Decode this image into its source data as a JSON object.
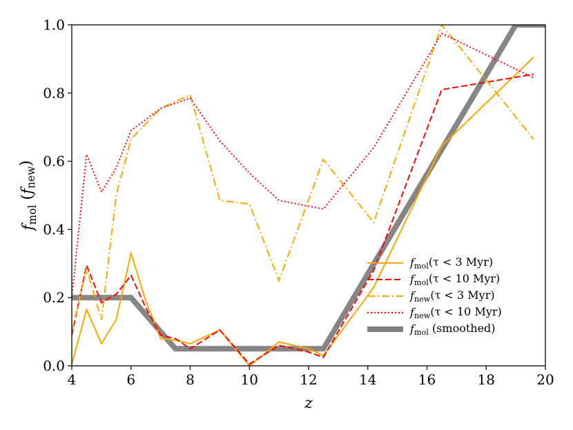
{
  "chart_data": {
    "type": "line",
    "xlabel": "z",
    "ylabel": "f_mol (f_new)",
    "ylabel_parts": [
      "f",
      "mol",
      " (",
      "f",
      "new",
      ")"
    ],
    "xlim": [
      4,
      20
    ],
    "ylim": [
      0,
      1
    ],
    "xticks": [
      4,
      6,
      8,
      10,
      12,
      14,
      16,
      18,
      20
    ],
    "yticks": [
      0.0,
      0.2,
      0.4,
      0.6,
      0.8,
      1.0
    ],
    "xtick_labels": [
      "4",
      "6",
      "8",
      "10",
      "12",
      "14",
      "16",
      "18",
      "20"
    ],
    "ytick_labels": [
      "0.0",
      "0.2",
      "0.4",
      "0.6",
      "0.8",
      "1.0"
    ],
    "grid": false,
    "legend_position": "lower-right",
    "series": [
      {
        "name": "f_mol(τ < 3 Myr)",
        "legend_parts": [
          "f",
          "mol",
          "(τ < 3 Myr)"
        ],
        "color": "#FFA500",
        "dash": "solid",
        "width": 2,
        "x": [
          4.0,
          4.5,
          5.0,
          5.5,
          6.0,
          6.5,
          7.0,
          7.5,
          8.0,
          9.0,
          10.0,
          11.0,
          12.0,
          12.5,
          14.2,
          16.5,
          19.6
        ],
        "y": [
          0.005,
          0.165,
          0.065,
          0.135,
          0.33,
          0.19,
          0.08,
          0.075,
          0.065,
          0.105,
          0.0,
          0.07,
          0.05,
          0.03,
          0.23,
          0.645,
          0.905
        ]
      },
      {
        "name": "f_mol(τ < 10 Myr)",
        "legend_parts": [
          "f",
          "mol",
          "(τ < 10 Myr)"
        ],
        "color": "#FF0000",
        "dash": "dashed",
        "width": 2,
        "x": [
          4.0,
          4.5,
          5.0,
          5.5,
          6.0,
          6.5,
          7.0,
          7.5,
          8.0,
          9.0,
          10.0,
          11.0,
          12.0,
          12.5,
          14.2,
          16.5,
          19.6
        ],
        "y": [
          0.09,
          0.295,
          0.185,
          0.21,
          0.265,
          0.17,
          0.09,
          0.08,
          0.05,
          0.105,
          0.005,
          0.06,
          0.04,
          0.025,
          0.28,
          0.81,
          0.855
        ]
      },
      {
        "name": "f_new(τ < 3 Myr)",
        "legend_parts": [
          "f",
          "new",
          "(τ < 3 Myr)"
        ],
        "color": "#FFA500",
        "dash": "dashdot",
        "width": 2,
        "x": [
          4.0,
          4.5,
          5.0,
          5.5,
          6.0,
          7.0,
          8.0,
          9.0,
          10.0,
          11.0,
          12.5,
          14.2,
          16.5,
          19.6
        ],
        "y": [
          0.1,
          0.285,
          0.135,
          0.5,
          0.665,
          0.755,
          0.795,
          0.485,
          0.475,
          0.25,
          0.605,
          0.42,
          1.0,
          0.665
        ]
      },
      {
        "name": "f_new(τ < 10 Myr)",
        "legend_parts": [
          "f",
          "new",
          "(τ < 10 Myr)"
        ],
        "color": "#FF0000",
        "dash": "dotted",
        "width": 2,
        "x": [
          4.0,
          4.5,
          5.0,
          5.5,
          6.0,
          7.0,
          8.0,
          9.0,
          10.0,
          11.0,
          12.5,
          14.2,
          16.5,
          19.6
        ],
        "y": [
          0.2,
          0.62,
          0.51,
          0.58,
          0.69,
          0.755,
          0.785,
          0.66,
          0.565,
          0.485,
          0.46,
          0.64,
          0.975,
          0.845
        ]
      },
      {
        "name": "f_mol (smoothed)",
        "legend_parts": [
          "f",
          "mol",
          " (smoothed)"
        ],
        "color": "#808080",
        "dash": "solid",
        "width": 8,
        "x": [
          4.0,
          6.0,
          7.5,
          12.5,
          19.0,
          20.0
        ],
        "y": [
          0.2,
          0.2,
          0.05,
          0.05,
          1.0,
          1.0
        ]
      }
    ]
  }
}
